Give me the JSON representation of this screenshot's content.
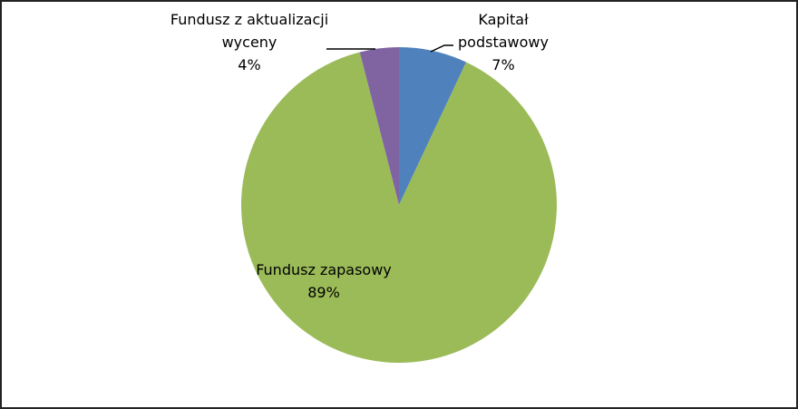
{
  "chart_data": {
    "type": "pie",
    "categories": [
      "Kapitał podstawowy",
      "Fundusz zapasowy",
      "Fundusz z aktualizacji wyceny"
    ],
    "values": [
      7,
      89,
      4
    ],
    "value_labels": [
      "7%",
      "89%",
      "4%"
    ],
    "colors": [
      "#4f81bd",
      "#9bbb59",
      "#8064a2"
    ]
  }
}
